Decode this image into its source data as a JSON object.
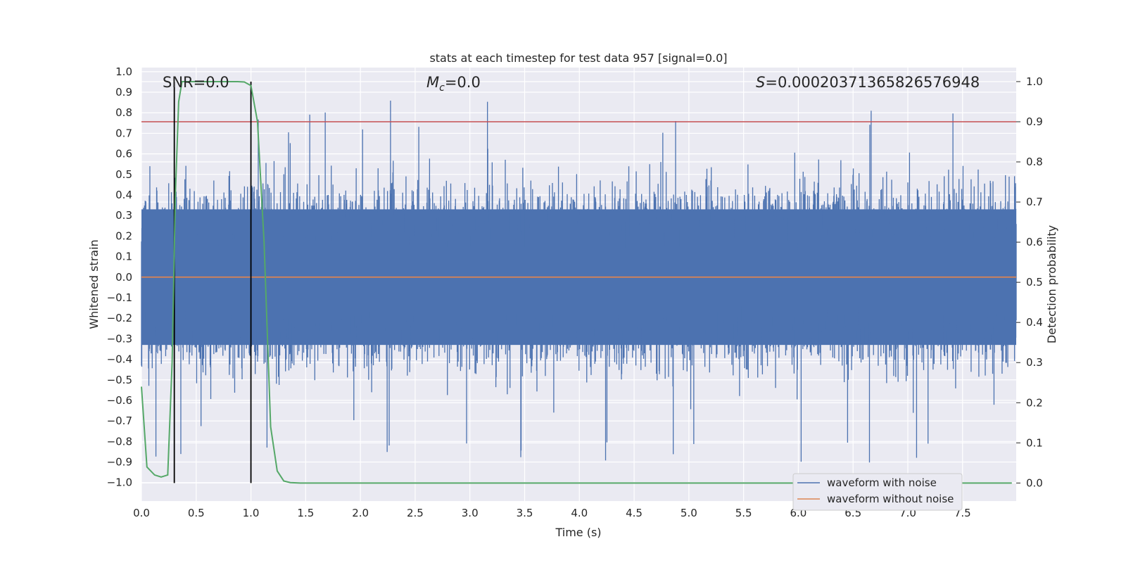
{
  "chart_data": {
    "type": "line",
    "title": "stats at each timestep for test data 957 [signal=0.0]",
    "xlabel": "Time (s)",
    "ylabel": "Whitened strain",
    "y2label": "Detection probability",
    "xlim": [
      0.0,
      7.99
    ],
    "ylim": [
      -1.09,
      1.02
    ],
    "y2lim": [
      -0.045,
      1.035
    ],
    "xticks": [
      "0.0",
      "0.5",
      "1.0",
      "1.5",
      "2.0",
      "2.5",
      "3.0",
      "3.5",
      "4.0",
      "4.5",
      "5.0",
      "5.5",
      "6.0",
      "6.5",
      "7.0",
      "7.5"
    ],
    "yticks": [
      "1.0",
      "0.9",
      "0.8",
      "0.7",
      "0.6",
      "0.5",
      "0.4",
      "0.3",
      "0.2",
      "0.1",
      "0.0",
      "−0.1",
      "−0.2",
      "−0.3",
      "−0.4",
      "−0.5",
      "−0.6",
      "−0.7",
      "−0.8",
      "−0.9",
      "−1.0"
    ],
    "y2ticks": [
      "1.0",
      "0.9",
      "0.8",
      "0.7",
      "0.6",
      "0.5",
      "0.4",
      "0.3",
      "0.2",
      "0.1",
      "0.0"
    ],
    "grid": true,
    "legend_position": "lower-right",
    "annotations": {
      "snr": "SNR=0.0",
      "mc_symbol": "M",
      "mc_sub": "c",
      "mc_rest": "=0.0",
      "s_symbol": "S",
      "s_rest": "=0.00020371365826576948"
    },
    "series": [
      {
        "name": "waveform with noise",
        "color": "#4c72b0",
        "description_values": "dense noise, envelope approx ±0.45 with spikes up to ±0.9",
        "envelope_upper": 0.45,
        "envelope_lower": -0.45,
        "spike_max": 0.92,
        "spike_min": -0.99
      },
      {
        "name": "waveform without noise",
        "color": "#dd8452",
        "x": [
          0.0,
          7.99
        ],
        "y": [
          0.0,
          0.0
        ]
      },
      {
        "color": "#55a868",
        "axis": "right",
        "x": [
          0.0,
          0.05,
          0.12,
          0.18,
          0.24,
          0.28,
          0.31,
          0.34,
          0.37,
          0.42,
          0.5,
          0.6,
          0.7,
          0.8,
          0.88,
          0.94,
          1.0,
          1.06,
          1.12,
          1.18,
          1.24,
          1.3,
          1.36,
          1.45,
          1.6,
          2.0,
          3.0,
          4.0,
          5.0,
          6.0,
          7.0,
          7.95
        ],
        "y": [
          0.24,
          0.04,
          0.02,
          0.015,
          0.02,
          0.3,
          0.72,
          0.95,
          1.0,
          1.0,
          1.0,
          1.0,
          1.0,
          1.0,
          1.0,
          0.999,
          0.99,
          0.9,
          0.6,
          0.14,
          0.03,
          0.005,
          0.001,
          0.0,
          0.0,
          0.0,
          0.0,
          0.0,
          0.0,
          0.0,
          0.0,
          0.0
        ]
      }
    ],
    "threshold_line": {
      "axis": "right",
      "value": 0.9,
      "color": "#c44e52"
    },
    "vertical_lines": {
      "x": [
        0.3,
        1.0
      ],
      "color": "#000000"
    }
  }
}
